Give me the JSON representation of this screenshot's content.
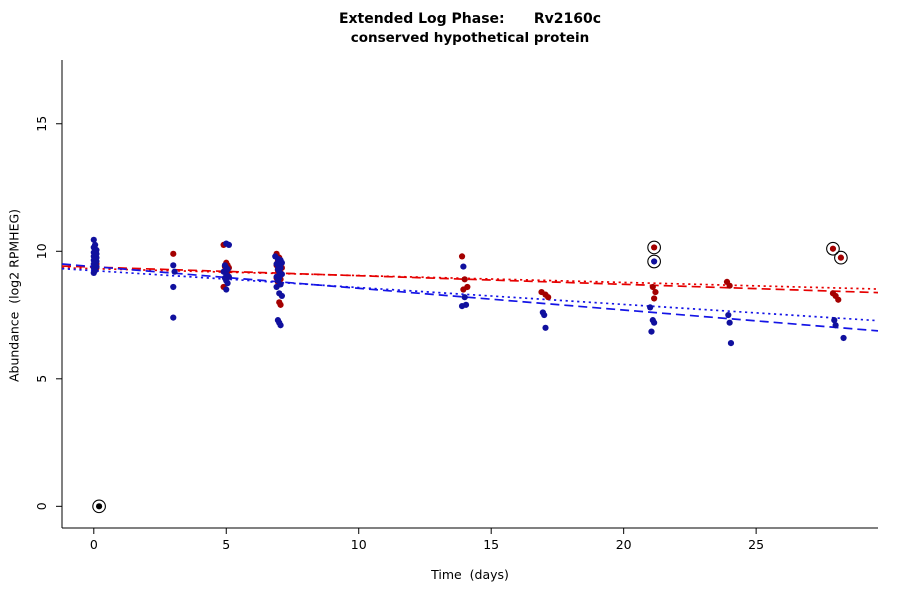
{
  "chart_data": {
    "type": "scatter",
    "title": "Extended Log Phase:      Rv2160c",
    "subtitle": "conserved hypothetical protein",
    "xlabel": "Time  (days)",
    "ylabel": "Abundance  (log2 RPMHEG)",
    "xlim": [
      -1.2,
      29.6
    ],
    "ylim": [
      -0.85,
      17.5
    ],
    "xticks": [
      0,
      5,
      10,
      15,
      20,
      25
    ],
    "yticks": [
      0,
      5,
      10,
      15
    ],
    "grid": false,
    "legend": "none",
    "point_radius": 3.1,
    "axis_color": "#000000",
    "series": [
      {
        "name": "red",
        "color": "#a40000",
        "points": [
          [
            0.05,
            9.6
          ],
          [
            0.1,
            9.5
          ],
          [
            0.1,
            9.35
          ],
          [
            3.0,
            9.9
          ],
          [
            4.9,
            10.25
          ],
          [
            5.0,
            9.55
          ],
          [
            5.05,
            9.45
          ],
          [
            4.95,
            9.4
          ],
          [
            5.1,
            9.35
          ],
          [
            5.0,
            9.3
          ],
          [
            5.05,
            9.2
          ],
          [
            4.9,
            8.6
          ],
          [
            6.9,
            9.9
          ],
          [
            7.0,
            9.75
          ],
          [
            6.95,
            9.6
          ],
          [
            7.05,
            9.55
          ],
          [
            6.9,
            9.45
          ],
          [
            7.0,
            9.4
          ],
          [
            7.1,
            9.35
          ],
          [
            6.95,
            9.25
          ],
          [
            7.05,
            9.15
          ],
          [
            7.0,
            9.05
          ],
          [
            6.9,
            8.95
          ],
          [
            7.05,
            8.9
          ],
          [
            6.95,
            8.8
          ],
          [
            7.0,
            8.7
          ],
          [
            7.0,
            8.0
          ],
          [
            7.05,
            7.9
          ],
          [
            13.9,
            9.8
          ],
          [
            14.0,
            8.9
          ],
          [
            14.1,
            8.6
          ],
          [
            13.95,
            8.5
          ],
          [
            16.9,
            8.4
          ],
          [
            17.05,
            8.3
          ],
          [
            17.15,
            8.2
          ],
          [
            21.1,
            8.6
          ],
          [
            21.2,
            8.4
          ],
          [
            21.15,
            8.15
          ],
          [
            23.9,
            8.8
          ],
          [
            24.0,
            8.65
          ],
          [
            27.9,
            8.35
          ],
          [
            28.0,
            8.25
          ],
          [
            28.1,
            8.1
          ]
        ]
      },
      {
        "name": "blue",
        "color": "#10109e",
        "points": [
          [
            0.0,
            10.45
          ],
          [
            0.05,
            10.25
          ],
          [
            0.0,
            10.15
          ],
          [
            0.1,
            10.05
          ],
          [
            0.05,
            10.0
          ],
          [
            0.0,
            9.95
          ],
          [
            0.1,
            9.9
          ],
          [
            0.05,
            9.85
          ],
          [
            0.0,
            9.8
          ],
          [
            0.1,
            9.75
          ],
          [
            0.05,
            9.7
          ],
          [
            0.0,
            9.65
          ],
          [
            0.1,
            9.6
          ],
          [
            0.05,
            9.55
          ],
          [
            0.0,
            9.5
          ],
          [
            0.05,
            9.45
          ],
          [
            0.1,
            9.4
          ],
          [
            0.0,
            9.35
          ],
          [
            0.05,
            9.25
          ],
          [
            0.0,
            9.15
          ],
          [
            3.0,
            9.45
          ],
          [
            3.05,
            9.2
          ],
          [
            3.0,
            8.6
          ],
          [
            3.0,
            7.4
          ],
          [
            5.0,
            10.3
          ],
          [
            5.1,
            10.25
          ],
          [
            4.95,
            9.45
          ],
          [
            5.0,
            9.35
          ],
          [
            5.05,
            9.3
          ],
          [
            4.9,
            9.2
          ],
          [
            5.0,
            9.1
          ],
          [
            5.1,
            9.0
          ],
          [
            4.95,
            8.95
          ],
          [
            5.0,
            8.85
          ],
          [
            5.05,
            8.75
          ],
          [
            5.0,
            8.5
          ],
          [
            6.85,
            9.8
          ],
          [
            6.95,
            9.7
          ],
          [
            7.05,
            9.65
          ],
          [
            7.1,
            9.55
          ],
          [
            6.9,
            9.5
          ],
          [
            7.0,
            9.45
          ],
          [
            7.05,
            9.35
          ],
          [
            6.95,
            9.3
          ],
          [
            7.0,
            9.2
          ],
          [
            7.1,
            9.1
          ],
          [
            6.9,
            9.0
          ],
          [
            7.0,
            8.95
          ],
          [
            6.95,
            8.85
          ],
          [
            7.05,
            8.7
          ],
          [
            6.9,
            8.6
          ],
          [
            7.0,
            8.35
          ],
          [
            7.1,
            8.25
          ],
          [
            6.95,
            7.3
          ],
          [
            7.0,
            7.2
          ],
          [
            7.05,
            7.1
          ],
          [
            13.95,
            9.4
          ],
          [
            14.0,
            8.2
          ],
          [
            14.05,
            7.9
          ],
          [
            13.9,
            7.85
          ],
          [
            16.95,
            7.6
          ],
          [
            17.0,
            7.5
          ],
          [
            17.05,
            7.0
          ],
          [
            21.0,
            7.8
          ],
          [
            21.1,
            7.3
          ],
          [
            21.15,
            7.2
          ],
          [
            21.05,
            6.85
          ],
          [
            23.95,
            7.5
          ],
          [
            24.0,
            7.2
          ],
          [
            24.05,
            6.4
          ],
          [
            27.95,
            7.3
          ],
          [
            28.0,
            7.1
          ],
          [
            28.3,
            6.6
          ]
        ]
      }
    ],
    "trend_lines": [
      {
        "name": "red-dashed",
        "color": "#e60000",
        "style": "dashed",
        "x": [
          -1.2,
          29.6
        ],
        "y": [
          9.42,
          8.38
        ]
      },
      {
        "name": "red-dotted",
        "color": "#e60000",
        "style": "dotted",
        "x": [
          -1.2,
          29.6
        ],
        "y": [
          9.35,
          8.52
        ]
      },
      {
        "name": "blue-dashed",
        "color": "#1414e6",
        "style": "dashed",
        "x": [
          -1.2,
          29.6
        ],
        "y": [
          9.5,
          6.88
        ]
      },
      {
        "name": "blue-dotted",
        "color": "#1414e6",
        "style": "dotted",
        "x": [
          -1.2,
          29.6
        ],
        "y": [
          9.32,
          7.28
        ]
      }
    ],
    "circled_points": [
      {
        "x": 0.2,
        "y": 0.0,
        "color": "#000000"
      },
      {
        "x": 21.15,
        "y": 10.15,
        "color": "#a40000"
      },
      {
        "x": 21.15,
        "y": 9.6,
        "color": "#10109e"
      },
      {
        "x": 27.9,
        "y": 10.1,
        "color": "#a40000"
      },
      {
        "x": 28.2,
        "y": 9.75,
        "color": "#a40000"
      }
    ]
  }
}
